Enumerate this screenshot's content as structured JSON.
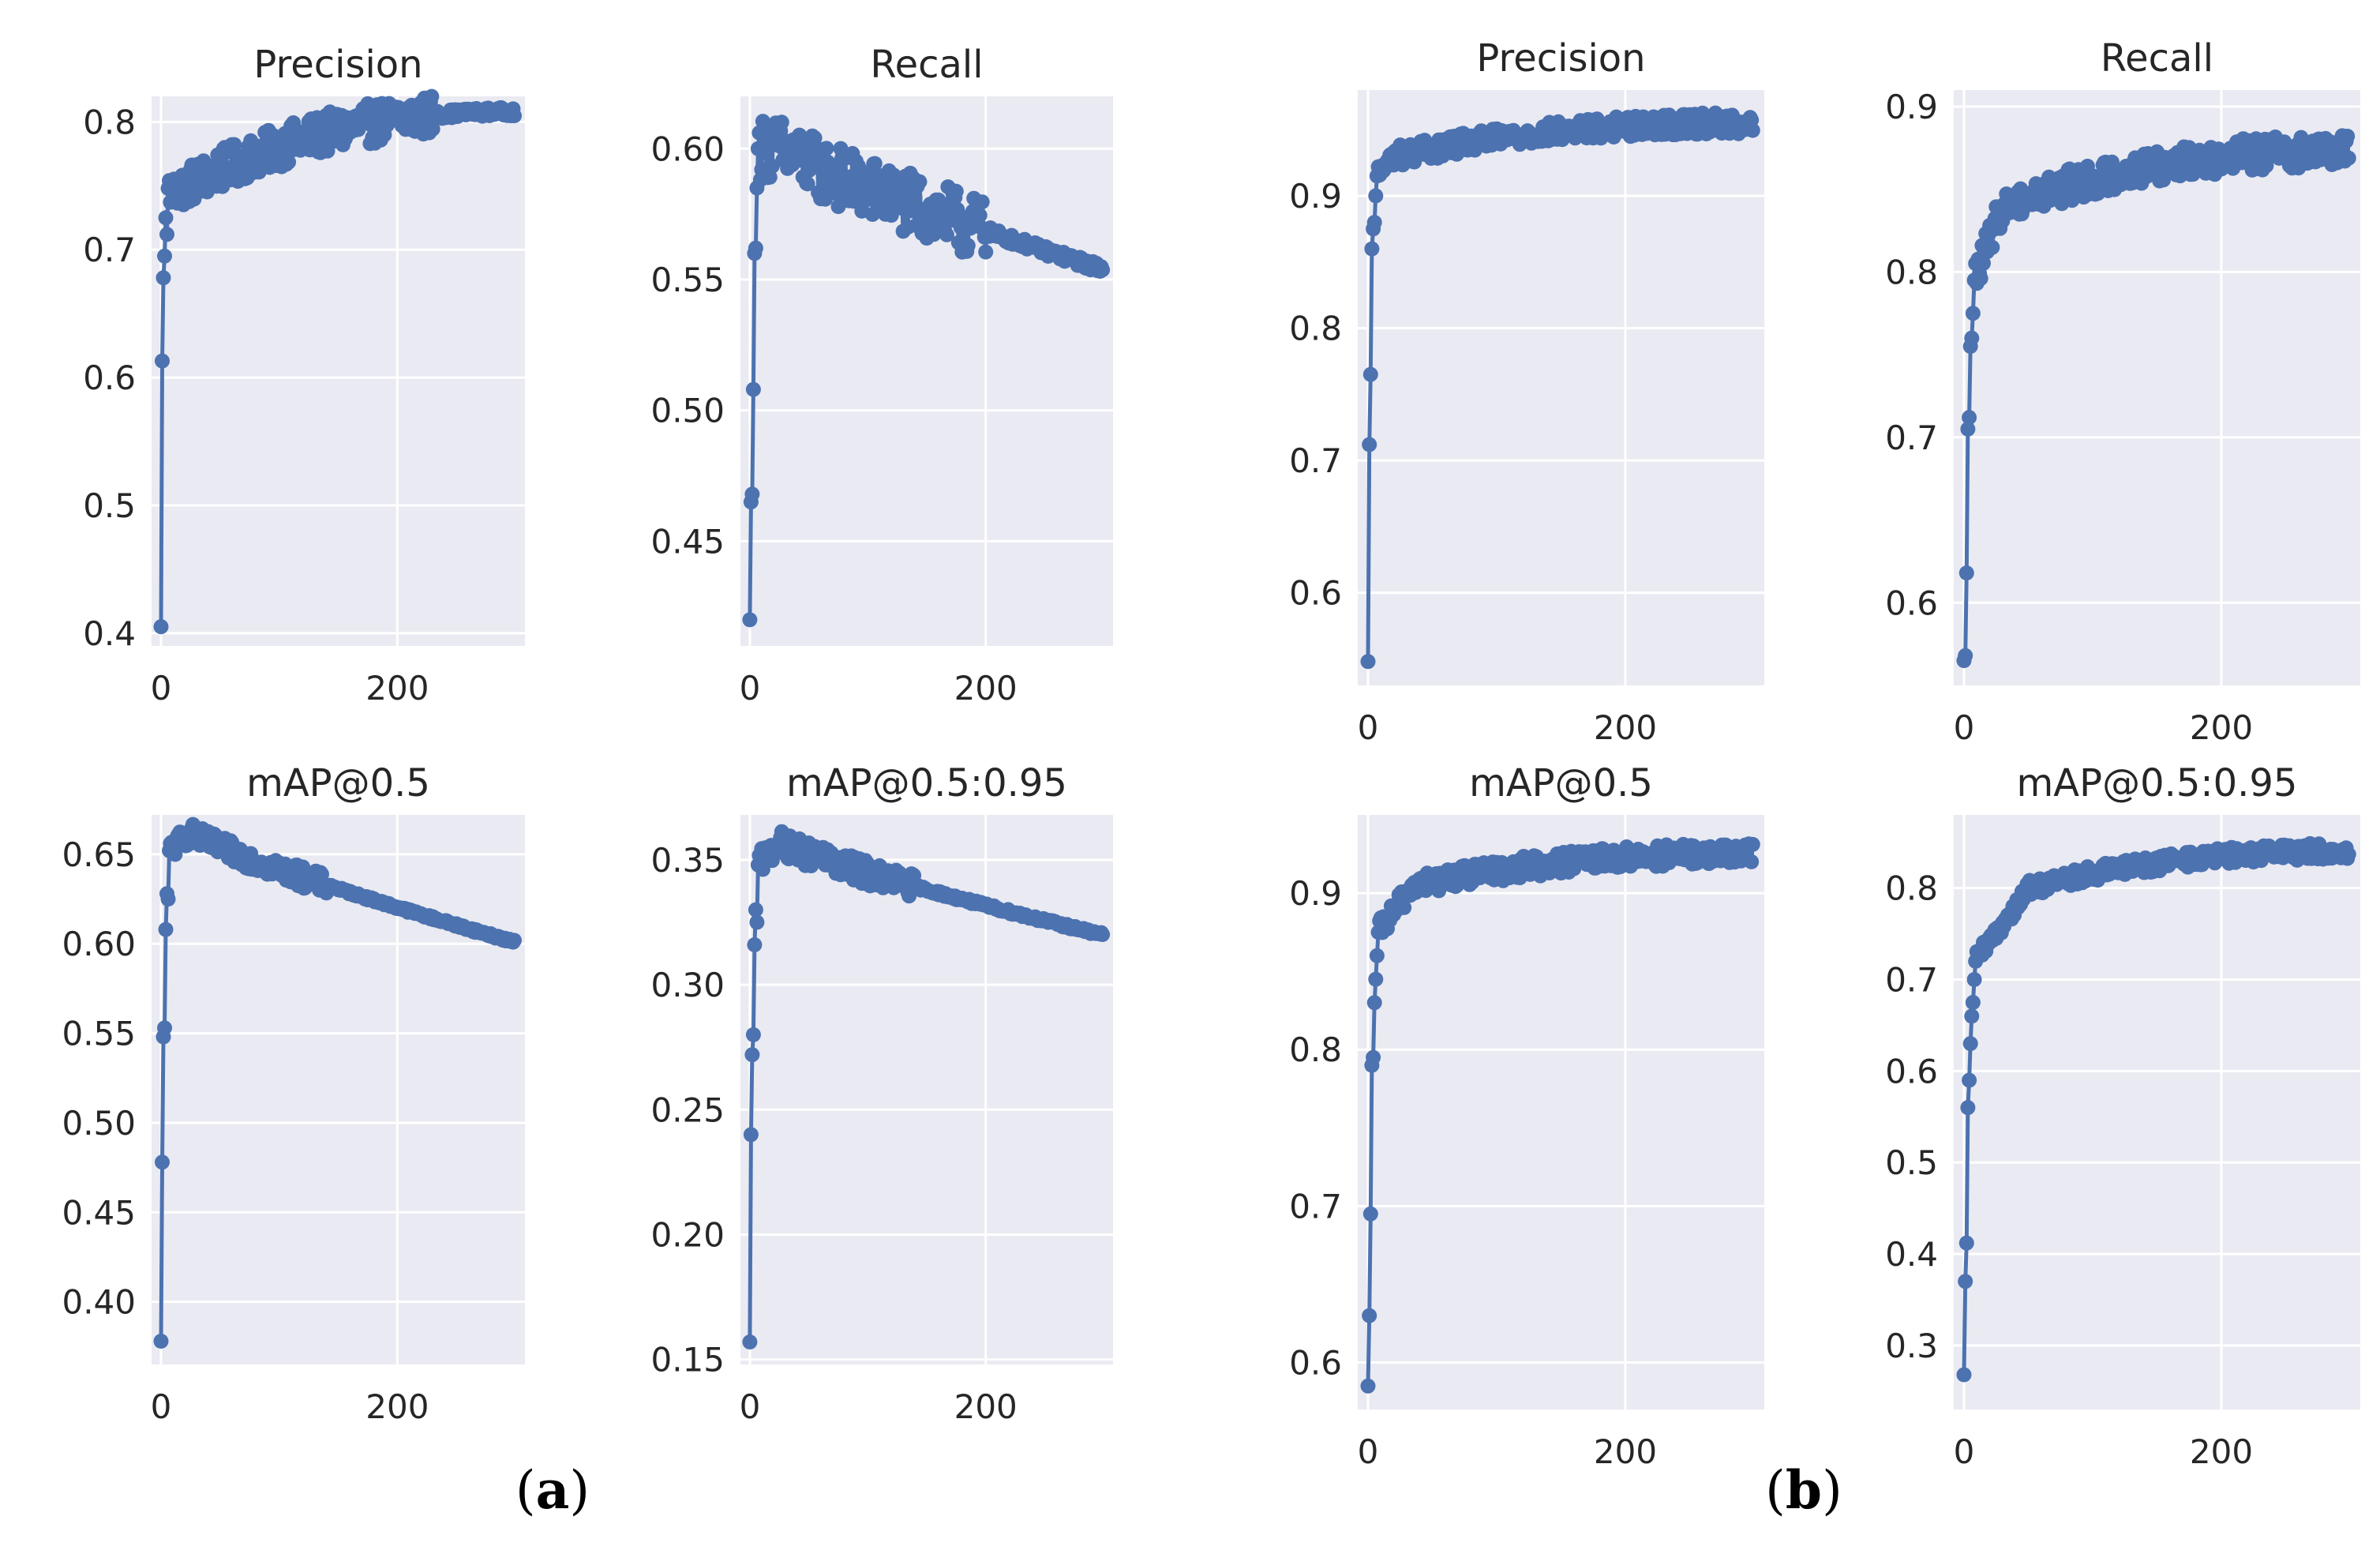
{
  "captions": [
    {
      "open": "(",
      "letter": "a",
      "close": ")"
    },
    {
      "open": "(",
      "letter": "b",
      "close": ")"
    }
  ],
  "style": {
    "panel_bg": "#eaeaf2",
    "grid": "#ffffff",
    "series_color": "#4c72b0",
    "text_color": "#262626"
  },
  "chart_data": [
    {
      "id": "a-precision",
      "type": "line",
      "markers": true,
      "grid": true,
      "title": "Precision",
      "xlabel": "",
      "ylabel": "",
      "xlim": [
        -8,
        308
      ],
      "ylim": [
        0.39,
        0.82
      ],
      "xticks": [
        0,
        200
      ],
      "yticks": [
        0.4,
        0.5,
        0.6,
        0.7,
        0.8
      ],
      "ytick_labels": [
        "0.4",
        "0.5",
        "0.6",
        "0.7",
        "0.8"
      ],
      "series": [
        {
          "values_model": {
            "kind": "rise_then_trend",
            "x_end": 299,
            "start": 0.405,
            "early": [
              0.613,
              0.678,
              0.695,
              0.725,
              0.712,
              0.748
            ],
            "knee": 0.745,
            "end": 0.808,
            "knee_x": 10,
            "noise": 0.016,
            "noise_start": 10,
            "noise_end": 230
          }
        }
      ]
    },
    {
      "id": "a-recall",
      "type": "line",
      "markers": true,
      "grid": true,
      "title": "Recall",
      "xlabel": "",
      "ylabel": "",
      "xlim": [
        -8,
        308
      ],
      "ylim": [
        0.41,
        0.62
      ],
      "xticks": [
        0,
        200
      ],
      "yticks": [
        0.45,
        0.5,
        0.55,
        0.6
      ],
      "ytick_labels": [
        "0.45",
        "0.50",
        "0.55",
        "0.60"
      ],
      "series": [
        {
          "values_model": {
            "kind": "peak_then_decay",
            "x_end": 299,
            "start": 0.42,
            "early": [
              0.465,
              0.468,
              0.508,
              0.56,
              0.562,
              0.585,
              0.6
            ],
            "peak": 0.6,
            "peak_x": 25,
            "end": 0.554,
            "noise": 0.012,
            "noise_end": 200
          }
        }
      ]
    },
    {
      "id": "a-map50",
      "type": "line",
      "markers": true,
      "grid": true,
      "title": "mAP@0.5",
      "xlabel": "",
      "ylabel": "",
      "xlim": [
        -8,
        308
      ],
      "ylim": [
        0.365,
        0.672
      ],
      "xticks": [
        0,
        200
      ],
      "yticks": [
        0.4,
        0.45,
        0.5,
        0.55,
        0.6,
        0.65
      ],
      "ytick_labels": [
        "0.40",
        "0.45",
        "0.50",
        "0.55",
        "0.60",
        "0.65"
      ],
      "series": [
        {
          "values_model": {
            "kind": "peak_then_decay",
            "x_end": 299,
            "start": 0.378,
            "early": [
              0.478,
              0.548,
              0.553,
              0.608,
              0.628,
              0.625,
              0.652
            ],
            "peak": 0.662,
            "peak_x": 25,
            "end": 0.601,
            "noise": 0.006,
            "noise_end": 140
          }
        }
      ]
    },
    {
      "id": "a-map5095",
      "type": "line",
      "markers": true,
      "grid": true,
      "title": "mAP@0.5:0.95",
      "xlabel": "",
      "ylabel": "",
      "xlim": [
        -8,
        308
      ],
      "ylim": [
        0.148,
        0.368
      ],
      "xticks": [
        0,
        200
      ],
      "yticks": [
        0.15,
        0.2,
        0.25,
        0.3,
        0.35
      ],
      "ytick_labels": [
        "0.15",
        "0.20",
        "0.25",
        "0.30",
        "0.35"
      ],
      "series": [
        {
          "values_model": {
            "kind": "peak_then_decay",
            "x_end": 299,
            "start": 0.157,
            "early": [
              0.24,
              0.272,
              0.28,
              0.316,
              0.33,
              0.325,
              0.348
            ],
            "peak": 0.357,
            "peak_x": 25,
            "end": 0.32,
            "noise": 0.005,
            "noise_end": 140
          }
        }
      ]
    },
    {
      "id": "b-precision",
      "type": "line",
      "markers": true,
      "grid": true,
      "title": "Precision",
      "xlabel": "",
      "ylabel": "",
      "xlim": [
        -8,
        308
      ],
      "ylim": [
        0.53,
        0.98
      ],
      "xticks": [
        0,
        200
      ],
      "yticks": [
        0.6,
        0.7,
        0.8,
        0.9
      ],
      "ytick_labels": [
        "0.6",
        "0.7",
        "0.8",
        "0.9"
      ],
      "series": [
        {
          "values_model": {
            "kind": "rise_then_trend",
            "x_end": 299,
            "start": 0.548,
            "early": [
              0.712,
              0.765,
              0.86,
              0.875,
              0.88,
              0.9,
              0.915
            ],
            "knee": 0.93,
            "end": 0.955,
            "knee_x": 20,
            "noise": 0.008,
            "noise_start": 20,
            "noise_end": 299
          }
        }
      ]
    },
    {
      "id": "b-recall",
      "type": "line",
      "markers": true,
      "grid": true,
      "title": "Recall",
      "xlabel": "",
      "ylabel": "",
      "xlim": [
        -8,
        308
      ],
      "ylim": [
        0.55,
        0.91
      ],
      "xticks": [
        0,
        200
      ],
      "yticks": [
        0.6,
        0.7,
        0.8,
        0.9
      ],
      "ytick_labels": [
        "0.6",
        "0.7",
        "0.8",
        "0.9"
      ],
      "series": [
        {
          "values_model": {
            "kind": "rise_then_trend",
            "x_end": 299,
            "start": 0.565,
            "early": [
              0.568,
              0.618,
              0.705,
              0.712,
              0.755,
              0.76,
              0.775,
              0.795
            ],
            "knee": 0.84,
            "end": 0.873,
            "knee_x": 30,
            "noise": 0.01,
            "noise_start": 30,
            "noise_end": 299
          }
        }
      ]
    },
    {
      "id": "b-map50",
      "type": "line",
      "markers": true,
      "grid": true,
      "title": "mAP@0.5",
      "xlabel": "",
      "ylabel": "",
      "xlim": [
        -8,
        308
      ],
      "ylim": [
        0.57,
        0.95
      ],
      "xticks": [
        0,
        200
      ],
      "yticks": [
        0.6,
        0.7,
        0.8,
        0.9
      ],
      "ytick_labels": [
        "0.6",
        "0.7",
        "0.8",
        "0.9"
      ],
      "series": [
        {
          "values_model": {
            "kind": "rise_then_trend",
            "x_end": 299,
            "start": 0.585,
            "early": [
              0.63,
              0.695,
              0.79,
              0.795,
              0.83,
              0.845,
              0.86,
              0.875
            ],
            "knee": 0.905,
            "end": 0.925,
            "knee_x": 35,
            "noise": 0.007,
            "noise_start": 35,
            "noise_end": 299
          }
        }
      ]
    },
    {
      "id": "b-map5095",
      "type": "line",
      "markers": true,
      "grid": true,
      "title": "mAP@0.5:0.95",
      "xlabel": "",
      "ylabel": "",
      "xlim": [
        -8,
        308
      ],
      "ylim": [
        0.23,
        0.88
      ],
      "xticks": [
        0,
        200
      ],
      "yticks": [
        0.3,
        0.4,
        0.5,
        0.6,
        0.7,
        0.8
      ],
      "ytick_labels": [
        "0.3",
        "0.4",
        "0.5",
        "0.6",
        "0.7",
        "0.8"
      ],
      "series": [
        {
          "values_model": {
            "kind": "rise_then_trend",
            "x_end": 299,
            "start": 0.268,
            "early": [
              0.37,
              0.412,
              0.56,
              0.59,
              0.63,
              0.66,
              0.675,
              0.7,
              0.72
            ],
            "knee": 0.8,
            "end": 0.84,
            "knee_x": 50,
            "noise": 0.009,
            "noise_start": 50,
            "noise_end": 299
          }
        }
      ]
    }
  ]
}
